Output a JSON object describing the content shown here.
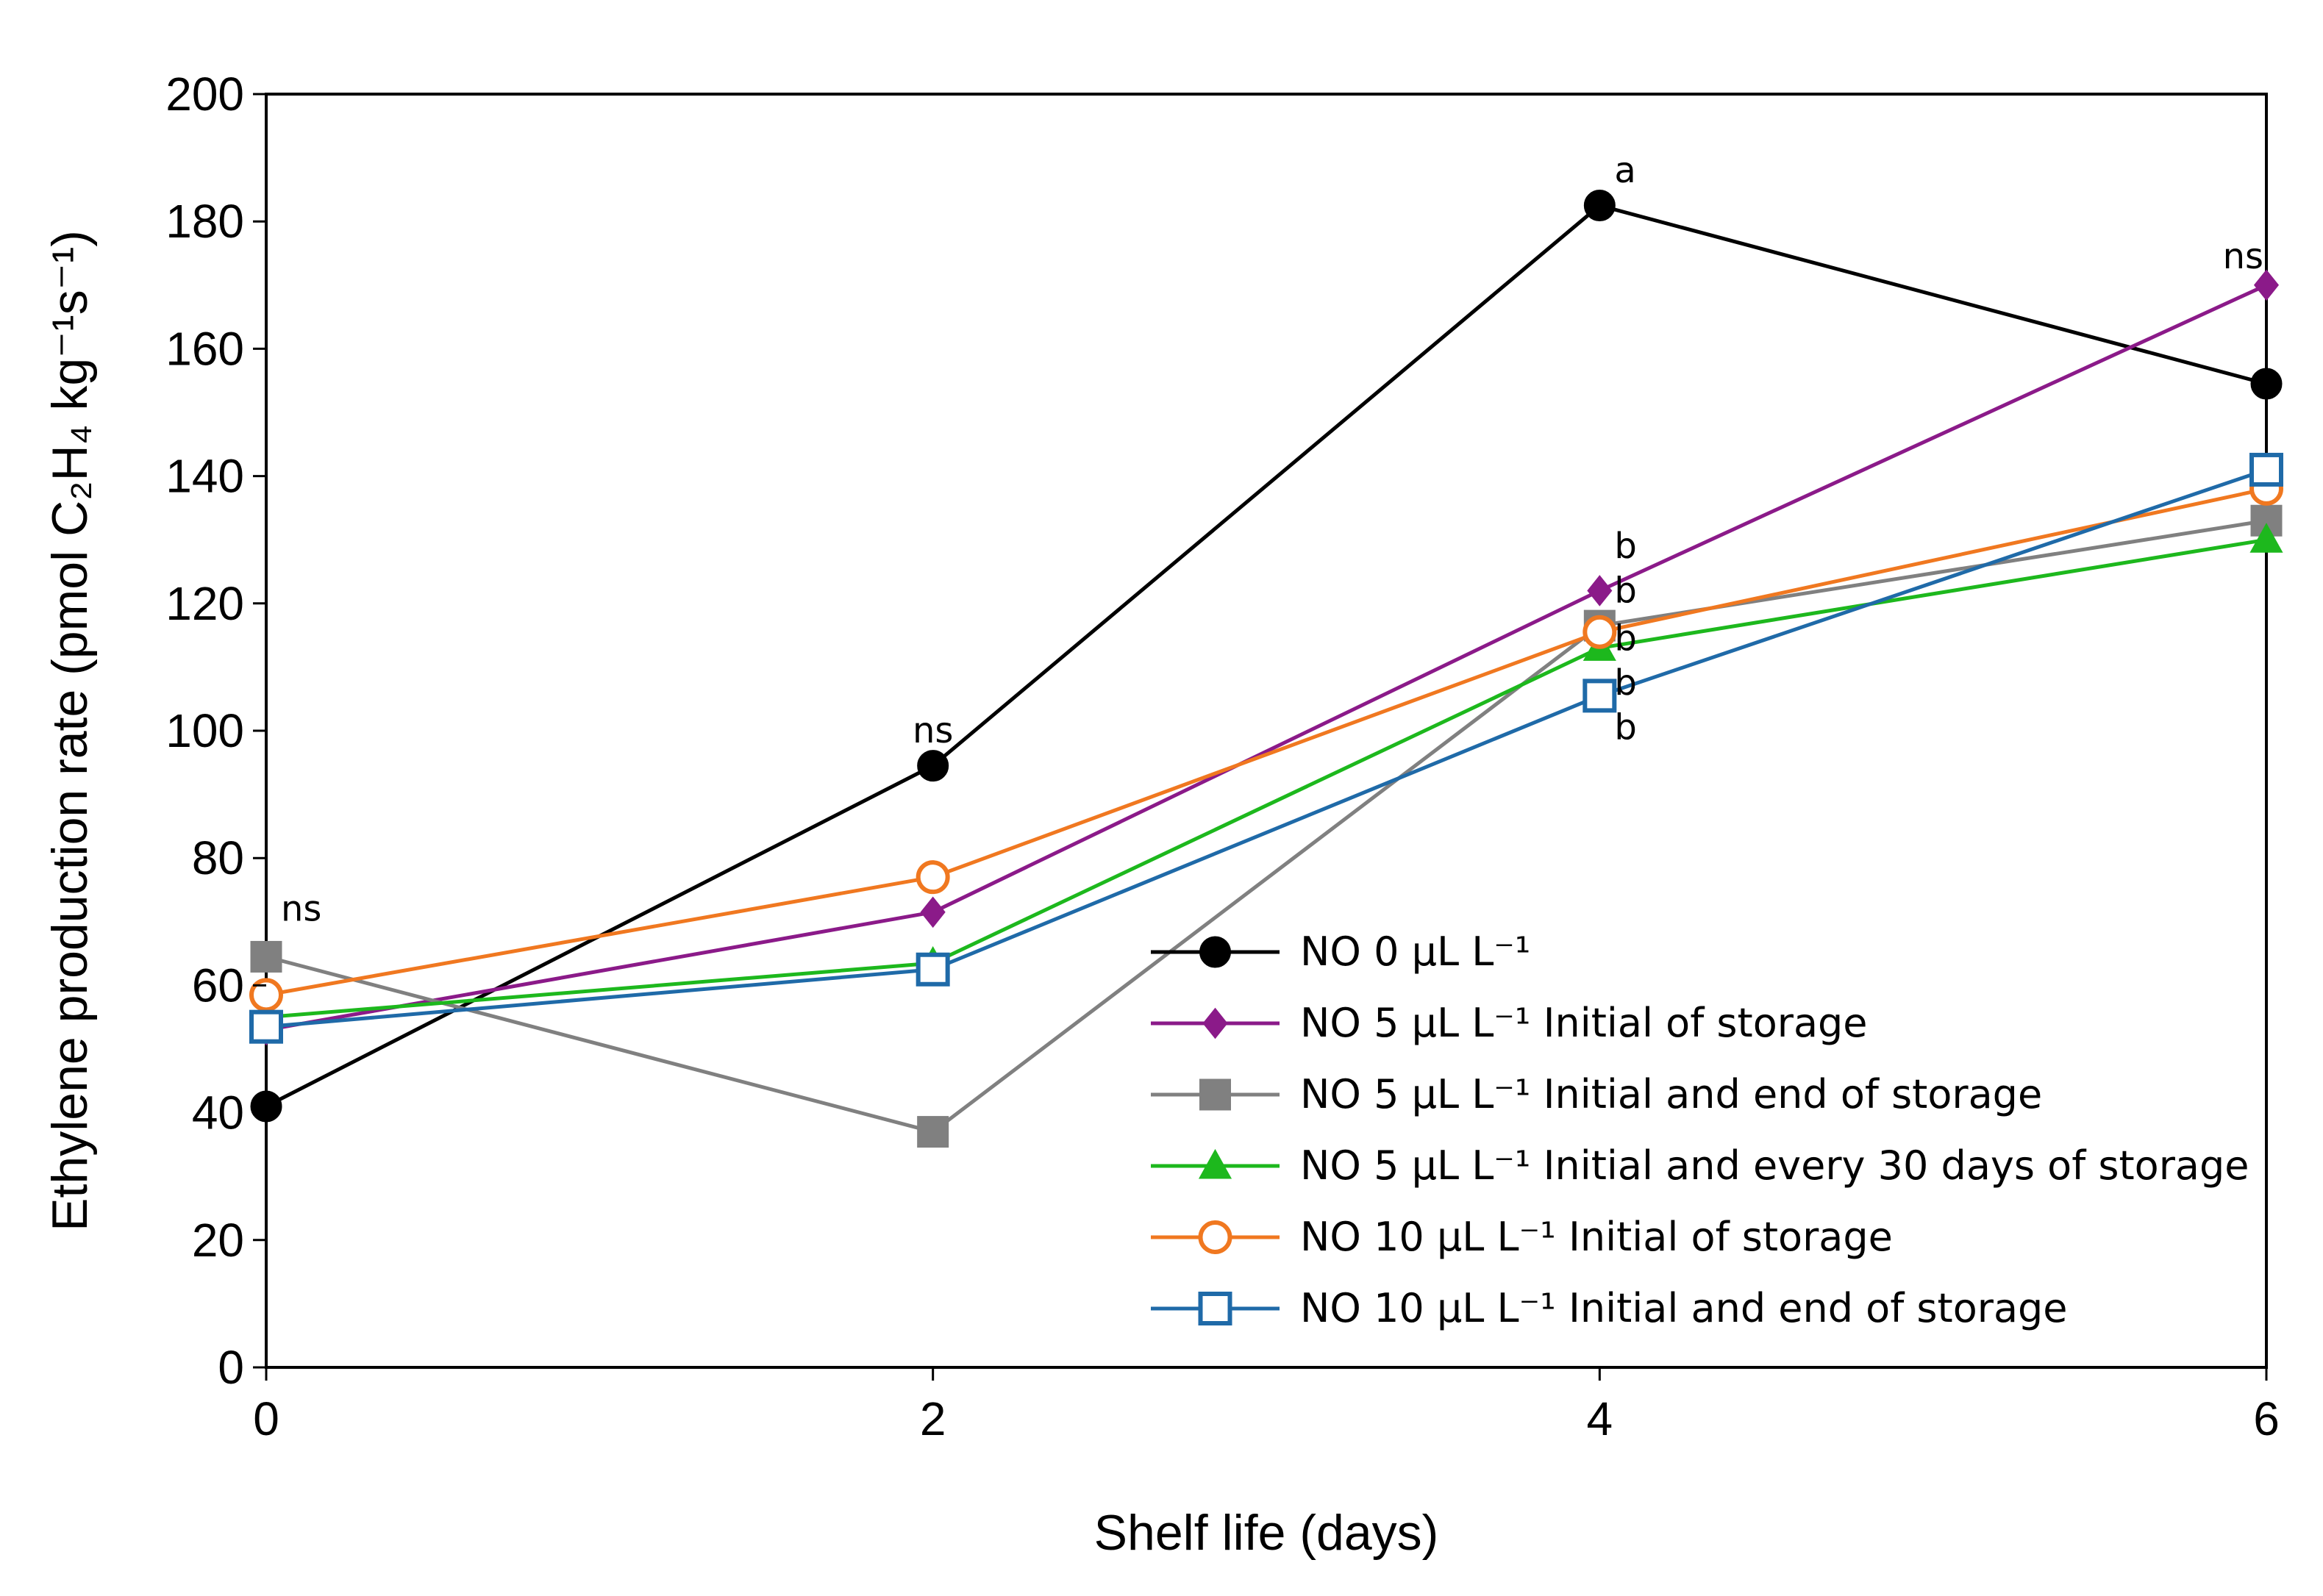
{
  "chart_data": {
    "type": "line",
    "title": "",
    "xlabel": "Shelf life (days)",
    "ylabel": "Ethylene production rate (pmol C₂H₄ kg⁻¹s⁻¹)",
    "x": [
      0,
      2,
      4,
      6
    ],
    "xlim": [
      0,
      6
    ],
    "ylim": [
      0,
      200
    ],
    "xticks": [
      0,
      2,
      4,
      6
    ],
    "yticks": [
      0,
      20,
      40,
      60,
      80,
      100,
      120,
      140,
      160,
      180,
      200
    ],
    "grid": false,
    "legend_position": "bottom-right",
    "series": [
      {
        "name": "NO 0 μL L⁻¹",
        "values": [
          41,
          94.5,
          182.5,
          154.5
        ],
        "color": "#000000",
        "marker": "circle",
        "marker_fill": "filled"
      },
      {
        "name": "NO 5 μL L⁻¹ Initial of storage",
        "values": [
          53,
          71.5,
          122,
          170
        ],
        "color": "#8B1A89",
        "marker": "diamond",
        "marker_fill": "filled"
      },
      {
        "name": "NO 5 μL L⁻¹ Initial and end of storage",
        "values": [
          64.5,
          37,
          116.5,
          133
        ],
        "color": "#808080",
        "marker": "square",
        "marker_fill": "filled"
      },
      {
        "name": "NO 5 μL L⁻¹ Initial and every 30 days of storage",
        "values": [
          55,
          63.5,
          113,
          130
        ],
        "color": "#1DB81D",
        "marker": "triangle",
        "marker_fill": "filled"
      },
      {
        "name": "NO 10 μL L⁻¹ Initial of storage",
        "values": [
          58.5,
          77,
          115.5,
          138
        ],
        "color": "#F07820",
        "marker": "circle",
        "marker_fill": "open"
      },
      {
        "name": "NO 10 μL L⁻¹ Initial and end of storage",
        "values": [
          53.5,
          62.5,
          105.5,
          141
        ],
        "color": "#1F6AA8",
        "marker": "square",
        "marker_fill": "open"
      }
    ],
    "annotations": [
      {
        "text": "ns",
        "x": 0,
        "y": 72
      },
      {
        "text": "ns",
        "x": 2,
        "y": 100
      },
      {
        "text": "a",
        "x": 4,
        "y": 188
      },
      {
        "text": "b",
        "x": 4,
        "y": 129
      },
      {
        "text": "b",
        "x": 4,
        "y": 122
      },
      {
        "text": "b",
        "x": 4,
        "y": 114.5
      },
      {
        "text": "b",
        "x": 4,
        "y": 107.5
      },
      {
        "text": "b",
        "x": 4,
        "y": 100.5
      },
      {
        "text": "ns",
        "x": 6,
        "y": 174.5
      }
    ]
  }
}
